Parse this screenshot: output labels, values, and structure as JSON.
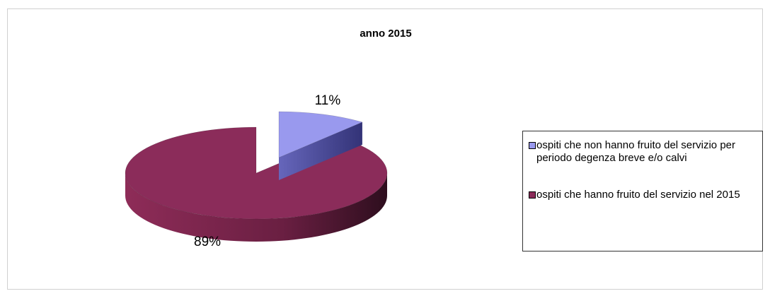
{
  "chart_data": {
    "type": "pie3d",
    "title": "anno 2015",
    "categories": [
      "ospiti che non hanno fruito del servizio per periodo degenza breve e/o calvi",
      "ospiti che hanno fruito del servizio nel 2015"
    ],
    "values": [
      11,
      89
    ],
    "value_labels": [
      "11%",
      "89%"
    ],
    "colors": [
      "#9999ee",
      "#8b2c5a"
    ],
    "legend": "right"
  }
}
